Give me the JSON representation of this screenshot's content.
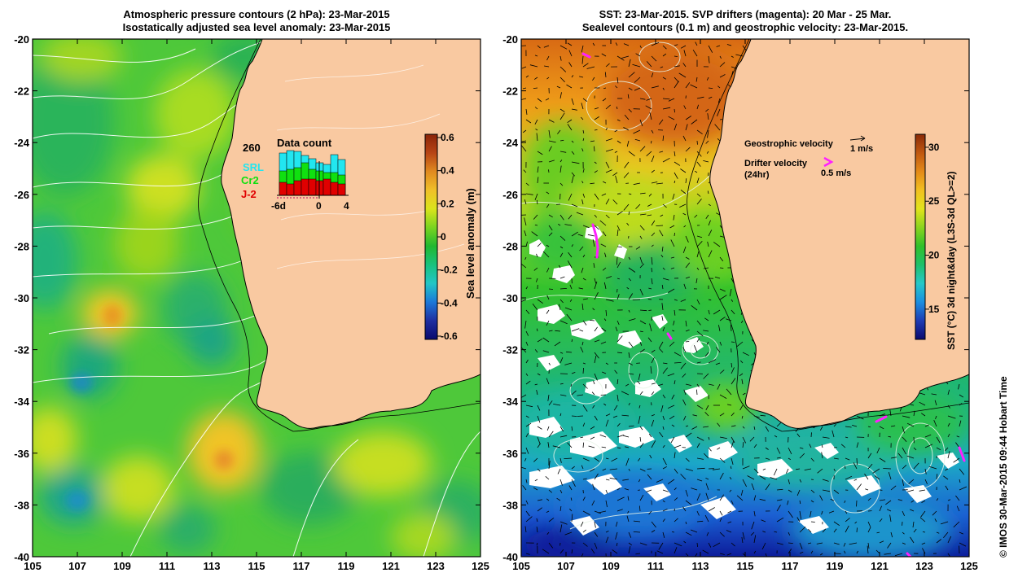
{
  "left_panel": {
    "title_line1": "Atmospheric pressure contours (2 hPa): 23-Mar-2015",
    "title_line2": "Isostatically adjusted sea level anomaly: 23-Mar-2015",
    "x_ticks": [
      "105",
      "107",
      "109",
      "111",
      "113",
      "115",
      "117",
      "119",
      "121",
      "123",
      "125"
    ],
    "y_ticks": [
      "-20",
      "-22",
      "-24",
      "-26",
      "-28",
      "-30",
      "-32",
      "-34",
      "-36",
      "-38",
      "-40"
    ],
    "colorbar": {
      "label": "Sea level anomaly (m)",
      "ticks": [
        "0.6",
        "0.4",
        "0.2",
        "0",
        "-0.2",
        "-0.4",
        "-0.6"
      ],
      "colors": [
        "#0a0a6e",
        "#1e2ea0",
        "#1c78d8",
        "#22c6c6",
        "#18c27e",
        "#20b830",
        "#7ad420",
        "#dae41c",
        "#f0c028",
        "#e08a20",
        "#b84414",
        "#8a2408"
      ]
    },
    "data_count": {
      "title": "Data count",
      "max_value": "260",
      "legend": [
        {
          "label": "SRL",
          "color": "#22e6f0"
        },
        {
          "label": "Cr2",
          "color": "#10e010"
        },
        {
          "label": "J-2",
          "color": "#e00000"
        }
      ],
      "x_ticks": [
        "-6d",
        "0",
        "4"
      ]
    }
  },
  "right_panel": {
    "title_line1": "SST: 23-Mar-2015. SVP drifters (magenta): 20 Mar - 25 Mar.",
    "title_line2": "Sealevel contours (0.1 m) and geostrophic velocity: 23-Mar-2015.",
    "x_ticks": [
      "105",
      "107",
      "109",
      "111",
      "113",
      "115",
      "117",
      "119",
      "121",
      "123",
      "125"
    ],
    "y_ticks": [
      "-20",
      "-22",
      "-24",
      "-26",
      "-28",
      "-30",
      "-32",
      "-34",
      "-36",
      "-38",
      "-40"
    ],
    "legend_geostrophic": "Geostrophic velocity",
    "legend_geostrophic_scale": "1 m/s",
    "legend_drifter_line1": "Drifter velocity",
    "legend_drifter_line2": "(24hr)",
    "legend_drifter_scale": "0.5 m/s",
    "colorbar": {
      "label": "SST (°C) 3d night&day (L3S-3d QL>=2)",
      "ticks": [
        "30",
        "25",
        "20",
        "15"
      ],
      "colors": [
        "#0a0a6e",
        "#1e3cb4",
        "#1a8ee0",
        "#26c8c8",
        "#1ec06a",
        "#30c02a",
        "#8ad41e",
        "#e2e41c",
        "#f2c020",
        "#e48a18",
        "#c05810",
        "#8a2a08"
      ]
    }
  },
  "credit": "© IMOS 30-Mar-2015 09:44 Hobart Time"
}
